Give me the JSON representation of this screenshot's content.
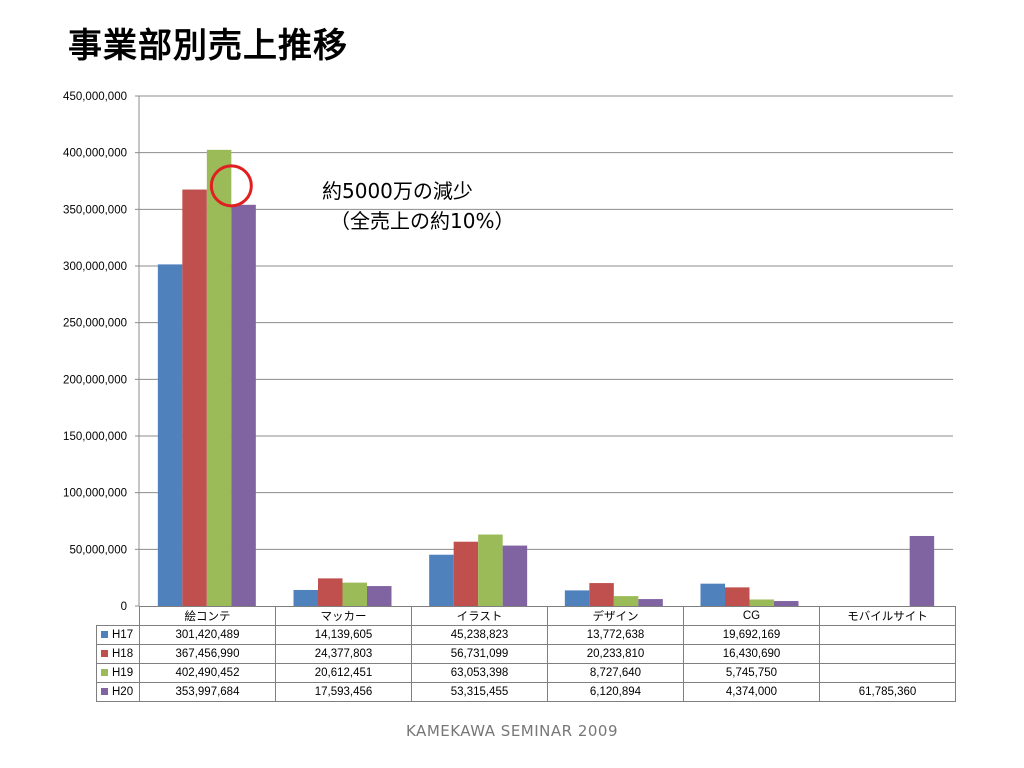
{
  "page": {
    "title": "事業部別売上推移",
    "annotation_line1": "約5000万の減少",
    "annotation_line2": "（全売上の約10%）",
    "footer": "KAMEKAWA SEMINAR 2009"
  },
  "chart_data": {
    "type": "bar",
    "categories": [
      "絵コンテ",
      "マッカー",
      "イラスト",
      "デザイン",
      "CG",
      "モバイルサイト"
    ],
    "series": [
      {
        "name": "H17",
        "color": "#4F81BD",
        "values": [
          301420489,
          14139605,
          45238823,
          13772638,
          19692169,
          null
        ],
        "labels": [
          "301,420,489",
          "14,139,605",
          "45,238,823",
          "13,772,638",
          "19,692,169",
          ""
        ]
      },
      {
        "name": "H18",
        "color": "#C0504D",
        "values": [
          367456990,
          24377803,
          56731099,
          20233810,
          16430690,
          null
        ],
        "labels": [
          "367,456,990",
          "24,377,803",
          "56,731,099",
          "20,233,810",
          "16,430,690",
          ""
        ]
      },
      {
        "name": "H19",
        "color": "#9BBB59",
        "values": [
          402490452,
          20612451,
          63053398,
          8727640,
          5745750,
          null
        ],
        "labels": [
          "402,490,452",
          "20,612,451",
          "63,053,398",
          "8,727,640",
          "5,745,750",
          ""
        ]
      },
      {
        "name": "H20",
        "color": "#8064A2",
        "values": [
          353997684,
          17593456,
          53315455,
          6120894,
          4374000,
          61785360
        ],
        "labels": [
          "353,997,684",
          "17,593,456",
          "53,315,455",
          "6,120,894",
          "4,374,000",
          "61,785,360"
        ]
      }
    ],
    "ylim": [
      0,
      450000000
    ],
    "yticks": [
      0,
      50000000,
      100000000,
      150000000,
      200000000,
      250000000,
      300000000,
      350000000,
      400000000,
      450000000
    ],
    "ytick_labels": [
      "0",
      "50,000,000",
      "100,000,000",
      "150,000,000",
      "200,000,000",
      "250,000,000",
      "300,000,000",
      "350,000,000",
      "400,000,000",
      "450,000,000"
    ],
    "grid": true,
    "legend": "data-table",
    "highlight": {
      "category": "絵コンテ",
      "series": "H19",
      "color": "#E02020"
    }
  }
}
